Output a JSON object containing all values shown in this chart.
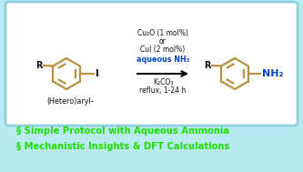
{
  "bg_outer": "#b8eaf2",
  "bg_inner": "#ffffff",
  "border_color": "#90d0e0",
  "catalyst_line1": "Cu₂O (1 mol%)",
  "catalyst_line2": "or",
  "catalyst_line3": "CuI (2 mol%)",
  "reagent_aqueous": "aqueous NH₃",
  "reagent_base": "K₂CO₃",
  "reagent_conditions": "reflux, 1-24 h",
  "label_heteroaryl": "(Hetero)aryl-",
  "bullet1": "§ Simple Protocol with Aqueous Ammonia",
  "bullet2": "§ Mechanistic Insights & DFT Calculations",
  "green_color": "#22dd00",
  "blue_color": "#0044cc",
  "black_color": "#111111",
  "ring_color": "#b89040",
  "nh2_color": "#0044cc",
  "r_color": "#111111",
  "figw": 3.33,
  "figh": 1.89,
  "dpi": 100
}
